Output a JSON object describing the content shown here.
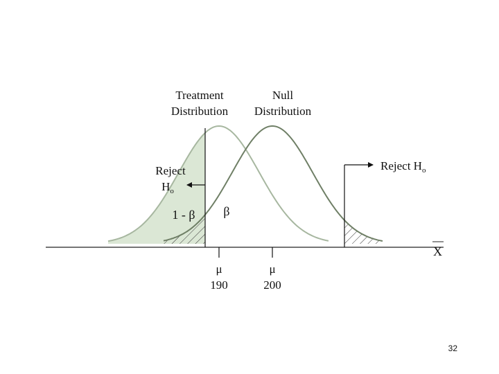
{
  "labels": {
    "treatment_line1": "Treatment",
    "treatment_line2": "Distribution",
    "null_line1": "Null",
    "null_line2": "Distribution",
    "reject_left_line1": "Reject",
    "reject_left_line2": "H",
    "reject_left_sub": "o",
    "reject_right": "Reject H",
    "reject_right_sub": "o",
    "power": "1 - β",
    "beta": "β",
    "axis_label": "X",
    "mu_left_symbol": "μ",
    "mu_left_value": "190",
    "mu_right_symbol": "μ",
    "mu_right_value": "200"
  },
  "colors": {
    "treatment_fill": "#dbe7d5",
    "treatment_curve": "#a7b7a0",
    "null_curve": "#6f7f66",
    "axis": "#222222",
    "hatch": "#333333"
  },
  "slide_number": "32"
}
